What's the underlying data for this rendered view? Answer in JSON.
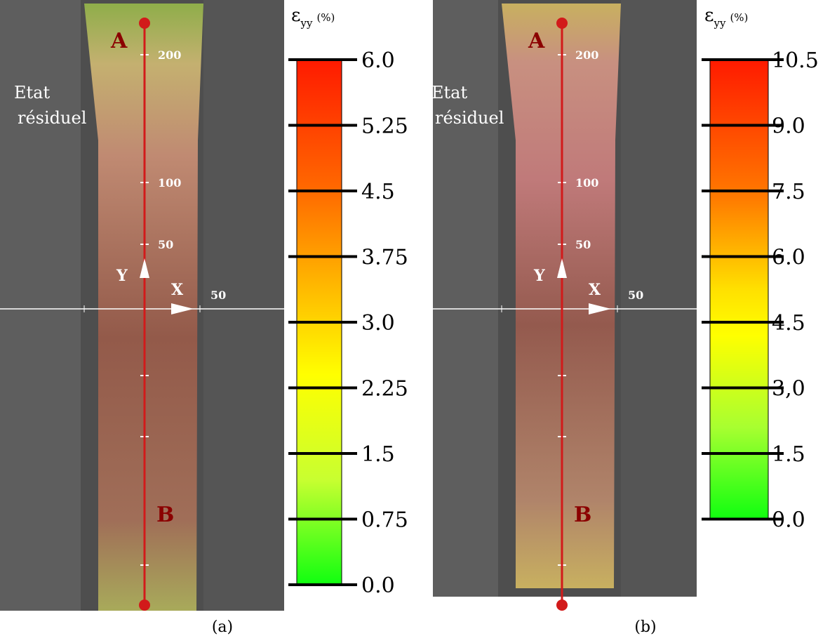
{
  "panels": [
    {
      "caption": "(a)",
      "annotation": [
        "Etat",
        "résiduel"
      ],
      "points": [
        "A",
        "B"
      ],
      "axes": {
        "y_label": "Y",
        "x_label": "X",
        "y_ticks": [
          "200",
          "100",
          "50"
        ],
        "x_ticks": [
          "50"
        ]
      },
      "colorbar": {
        "symbol": "ε",
        "subscript": "yy",
        "unit": "(%)",
        "ticks": [
          "6.0",
          "5.25",
          "4.5",
          "3.75",
          "3.0",
          "2.25",
          "1.5",
          "0.75",
          "0.0"
        ]
      }
    },
    {
      "caption": "(b)",
      "annotation": [
        "Etat",
        "résiduel"
      ],
      "points": [
        "A",
        "B"
      ],
      "axes": {
        "y_label": "Y",
        "x_label": "X",
        "y_ticks": [
          "200",
          "100",
          "50"
        ],
        "x_ticks": [
          "50"
        ]
      },
      "colorbar": {
        "symbol": "ε",
        "subscript": "yy",
        "unit": "(%)",
        "ticks": [
          "10.5",
          "9.0",
          "7.5",
          "6.0",
          "4.5",
          "3,0",
          "1.5",
          "0.0"
        ]
      }
    }
  ]
}
